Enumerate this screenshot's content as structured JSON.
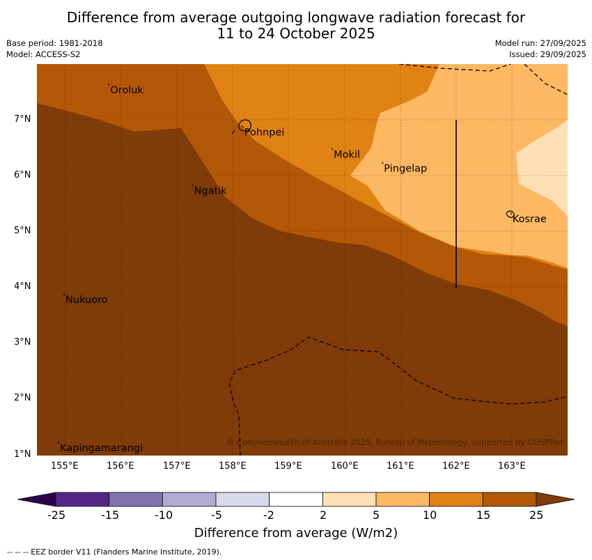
{
  "header": {
    "title_line1": "Difference from average outgoing longwave radiation forecast for",
    "title_line2": "11 to 24 October 2025",
    "base_period": "Base period: 1981-2018",
    "model": "Model: ACCESS-S2",
    "model_run": "Model run: 27/09/2025",
    "issued": "Issued: 29/09/2025"
  },
  "map": {
    "lon_range": [
      154.5,
      164.0
    ],
    "lat_range": [
      1.0,
      8.0
    ],
    "y_ticks": [
      "7°N",
      "6°N",
      "5°N",
      "4°N",
      "3°N",
      "2°N",
      "1°N"
    ],
    "x_ticks": [
      "155°E",
      "156°E",
      "157°E",
      "158°E",
      "159°E",
      "160°E",
      "161°E",
      "162°E",
      "163°E"
    ],
    "places": [
      {
        "name": "Oroluk",
        "lon": 155.8,
        "lat": 7.6
      },
      {
        "name": "Pohnpei",
        "lon": 158.2,
        "lat": 6.85
      },
      {
        "name": "Mokil",
        "lon": 159.8,
        "lat": 6.45
      },
      {
        "name": "Pingelap",
        "lon": 160.7,
        "lat": 6.2
      },
      {
        "name": "Ngatik",
        "lon": 157.3,
        "lat": 5.8
      },
      {
        "name": "Kosrae",
        "lon": 163.0,
        "lat": 5.3
      },
      {
        "name": "Nukuoro",
        "lon": 155.0,
        "lat": 3.85
      },
      {
        "name": "Kapingamarangi",
        "lon": 154.9,
        "lat": 1.2
      }
    ],
    "copyright": "© Commonwealth of Australia 2025, Bureau of Meteorology, supported by COSPPac"
  },
  "colorbar": {
    "title": "Difference from average (W/m2)",
    "tick_labels": [
      "-25",
      "-15",
      "-10",
      "-5",
      "-2",
      "2",
      "5",
      "10",
      "15",
      "25"
    ],
    "colors": [
      "#542788",
      "#8073ac",
      "#b2abd2",
      "#d8daeb",
      "#ffffff",
      "#fee0b6",
      "#fdb863",
      "#e08214",
      "#b35806"
    ],
    "low_extend_color": "#2d004b",
    "high_extend_color": "#7f3b08"
  },
  "footnote": "--  --  -- EEZ border V11 (Flanders Marine Institute, 2019).",
  "colors": {
    "band_15_25": "#b35806",
    "band_gt25": "#7f3b08",
    "band_10_15": "#e08214",
    "band_5_10": "#fdb863",
    "band_2_5": "#fee0b6"
  }
}
